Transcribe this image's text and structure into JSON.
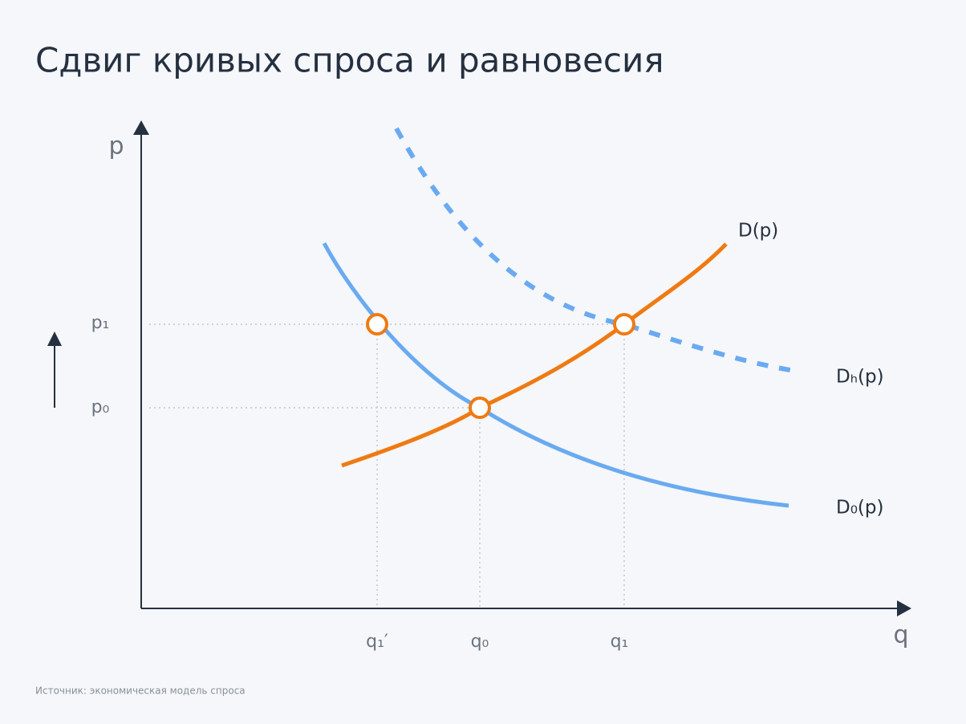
{
  "title": "Сдвиг кривых спроса и равновесия",
  "axes": {
    "y_label": "p",
    "x_label": "q"
  },
  "y_ticks": [
    "p₁",
    "p₀"
  ],
  "x_ticks": [
    "q₁′",
    "q₀",
    "q₁"
  ],
  "curves": {
    "supply": "D(p)",
    "shifted_demand": "Dₕ(p)",
    "initial_demand": "D₀(p)"
  },
  "source": "Источник: экономическая модель спроса"
}
